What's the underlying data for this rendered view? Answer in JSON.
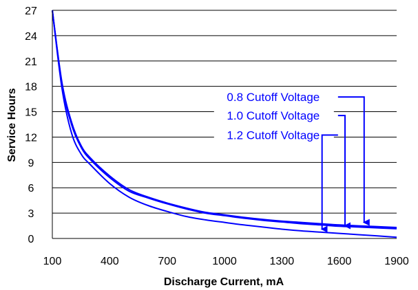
{
  "chart_data": {
    "type": "line",
    "title": "",
    "xlabel": "Discharge Current, mA",
    "ylabel": "Service Hours",
    "xlim": [
      100,
      1900
    ],
    "ylim": [
      0,
      27
    ],
    "x_ticks": [
      100,
      400,
      700,
      1000,
      1300,
      1600,
      1900
    ],
    "y_ticks": [
      0,
      3,
      6,
      9,
      12,
      15,
      18,
      21,
      24,
      27
    ],
    "grid": "horizontal",
    "line_color": "#0000ff",
    "series": [
      {
        "x": [
          100,
          150,
          200,
          250,
          300,
          400,
          500,
          600,
          700,
          800,
          900,
          1000,
          1100,
          1200,
          1300,
          1400,
          1500,
          1600,
          1700,
          1800,
          1900
        ],
        "y": [
          27,
          18.5,
          13.8,
          11.0,
          9.5,
          7.4,
          5.8,
          4.9,
          4.2,
          3.6,
          3.1,
          2.8,
          2.5,
          2.25,
          2.05,
          1.9,
          1.75,
          1.6,
          1.5,
          1.4,
          1.3
        ]
      },
      {
        "x": [
          100,
          150,
          200,
          250,
          300,
          400,
          500,
          600,
          700,
          800,
          900,
          1000,
          1100,
          1200,
          1300,
          1400,
          1500,
          1600,
          1700,
          1800,
          1900
        ],
        "y": [
          27,
          18.3,
          13.5,
          10.8,
          9.3,
          7.2,
          5.6,
          4.8,
          4.1,
          3.5,
          3.0,
          2.7,
          2.4,
          2.15,
          1.95,
          1.75,
          1.6,
          1.45,
          1.35,
          1.25,
          1.15
        ]
      },
      {
        "x": [
          100,
          150,
          200,
          250,
          300,
          400,
          500,
          600,
          700,
          800,
          900,
          1000,
          1100,
          1200,
          1300,
          1400,
          1500,
          1600,
          1700,
          1800,
          1900
        ],
        "y": [
          27,
          17.8,
          12.5,
          10.0,
          8.7,
          6.5,
          4.9,
          3.9,
          3.2,
          2.6,
          2.2,
          1.9,
          1.6,
          1.35,
          1.1,
          0.9,
          0.75,
          0.6,
          0.45,
          0.3,
          0.15
        ]
      }
    ],
    "annotations": [
      {
        "text": "0.8 Cutoff Voltage",
        "label_x": 1255,
        "label_y": 16.5,
        "elbow_x": 1730,
        "arrow_to_y": 1.9
      },
      {
        "text": "1.0 Cutoff Voltage",
        "label_x": 1255,
        "label_y": 14.3,
        "elbow_x": 1630,
        "arrow_to_y": 1.5
      },
      {
        "text": "1.2 Cutoff Voltage",
        "label_x": 1255,
        "label_y": 12.0,
        "elbow_x": 1510,
        "arrow_to_y": 1.1
      }
    ]
  }
}
